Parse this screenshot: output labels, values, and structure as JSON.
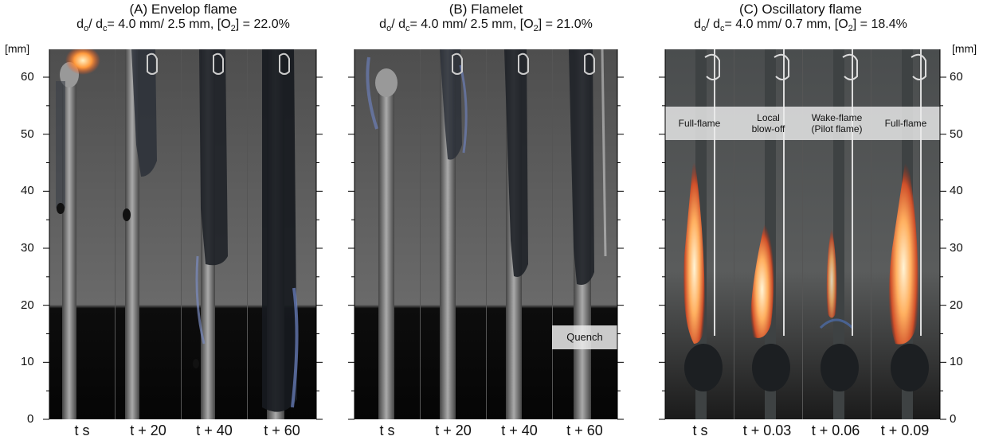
{
  "panels": [
    {
      "title": "(A) Envelop flame",
      "sub": {
        "d_o": "4.0 mm",
        "d_c": "2.5 mm",
        "o2": "22.0%"
      },
      "times": [
        "t s",
        "t + 20",
        "t + 40",
        "t + 60"
      ]
    },
    {
      "title": "(B) Flamelet",
      "sub": {
        "d_o": "4.0 mm",
        "d_c": "2.5 mm",
        "o2": "21.0%"
      },
      "times": [
        "t s",
        "t + 20",
        "t + 40",
        "t + 60"
      ],
      "annotation": "Quench"
    },
    {
      "title": "(C) Oscillatory flame",
      "sub": {
        "d_o": "4.0 mm",
        "d_c": "0.7 mm",
        "o2": "18.4%"
      },
      "times": [
        "t s",
        "t + 0.03",
        "t + 0.06",
        "t + 0.09"
      ],
      "labels": [
        "Full-flame",
        "Local\nblow-off",
        "Wake-flame\n(Pilot flame)",
        "Full-flame"
      ]
    }
  ],
  "axis": {
    "unit": "[mm]",
    "ticks": [
      "0",
      "10",
      "20",
      "30",
      "40",
      "50",
      "60"
    ]
  },
  "colors": {
    "background_grey": "#5a5a5a",
    "dark_lower": "#0a0a0a",
    "flame_orange": "#ff9a3c",
    "flame_blue": "#6f86c8",
    "wire": "#c8c8c8"
  }
}
